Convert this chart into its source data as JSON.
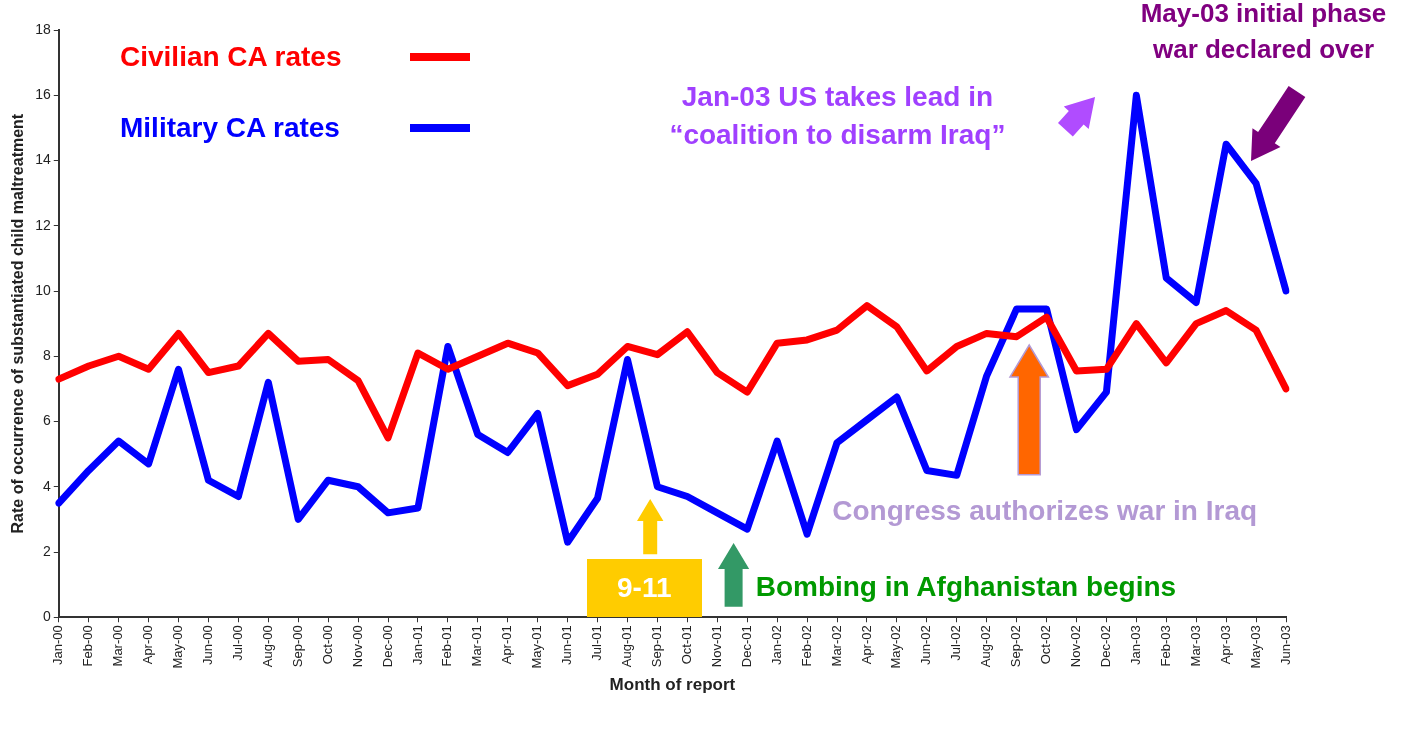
{
  "chart_data": {
    "type": "line",
    "xlabel": "Month of report",
    "ylabel": "Rate of occurrence of substantiated child maltreatment",
    "categories": [
      "Jan-00",
      "Feb-00",
      "Mar-00",
      "Apr-00",
      "May-00",
      "Jun-00",
      "Jul-00",
      "Aug-00",
      "Sep-00",
      "Oct-00",
      "Nov-00",
      "Dec-00",
      "Jan-01",
      "Feb-01",
      "Mar-01",
      "Apr-01",
      "May-01",
      "Jun-01",
      "Jul-01",
      "Aug-01",
      "Sep-01",
      "Oct-01",
      "Nov-01",
      "Dec-01",
      "Jan-02",
      "Feb-02",
      "Mar-02",
      "Apr-02",
      "May-02",
      "Jun-02",
      "Jul-02",
      "Aug-02",
      "Sep-02",
      "Oct-02",
      "Nov-02",
      "Dec-02",
      "Jan-03",
      "Feb-03",
      "Mar-03",
      "Apr-03",
      "May-03",
      "Jun-03"
    ],
    "series": [
      {
        "name": "Civilian CA rates",
        "color": "#ff0000",
        "values": [
          7.3,
          7.7,
          8.0,
          7.6,
          8.7,
          7.5,
          7.7,
          8.7,
          7.85,
          7.9,
          7.25,
          5.5,
          8.1,
          7.6,
          8.0,
          8.4,
          8.1,
          7.1,
          7.45,
          8.3,
          8.05,
          8.75,
          7.5,
          6.9,
          8.4,
          8.5,
          8.8,
          9.55,
          8.9,
          7.55,
          8.3,
          8.7,
          8.6,
          9.2,
          7.55,
          7.6,
          9.0,
          7.8,
          9.0,
          9.4,
          8.8,
          7.0
        ]
      },
      {
        "name": "Military CA rates",
        "color": "#0000ff",
        "values": [
          3.5,
          4.5,
          5.4,
          4.7,
          7.6,
          4.2,
          3.7,
          7.2,
          3.0,
          4.2,
          4.0,
          3.2,
          3.35,
          8.3,
          5.6,
          5.05,
          6.25,
          2.3,
          3.65,
          7.9,
          4.0,
          3.7,
          3.2,
          2.7,
          5.4,
          2.55,
          5.35,
          6.05,
          6.75,
          4.5,
          4.35,
          7.4,
          9.45,
          9.45,
          5.75,
          6.9,
          16.0,
          10.4,
          9.65,
          14.5,
          13.3,
          10.0
        ]
      }
    ],
    "ylim": [
      0,
      18
    ],
    "yticks": [
      0,
      2,
      4,
      6,
      8,
      10,
      12,
      14,
      16,
      18
    ],
    "grid": false,
    "legend": "top left",
    "marker": "none",
    "line_style": "solid",
    "annotations": [
      "Jan-03 US takes lead in “coalition to disarm Iraq”",
      "May-03 initial phase war declared over",
      "Congress authorizes war in Iraq",
      "9-11",
      {
        "text": "Bombing in Afghanistan begins",
        "x": "Dec-01",
        "y": 2.7
      }
    ]
  }
}
